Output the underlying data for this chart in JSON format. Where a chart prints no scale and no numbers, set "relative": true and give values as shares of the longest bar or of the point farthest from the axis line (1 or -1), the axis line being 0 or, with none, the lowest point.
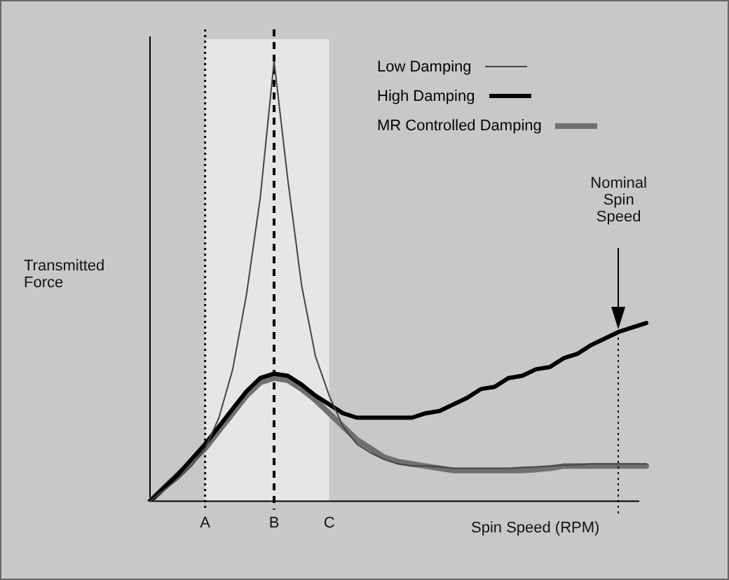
{
  "chart_data": {
    "type": "line",
    "relative": true,
    "ylabel": "Transmitted Force",
    "xlabel": "Spin Speed (RPM)",
    "categories": [
      null,
      null,
      null,
      null,
      "A",
      null,
      null,
      null,
      null,
      "B",
      null,
      null,
      null,
      "C",
      null,
      null,
      null,
      null,
      null,
      null,
      null,
      null,
      null,
      null,
      null,
      null,
      null,
      null,
      null,
      null,
      null,
      null,
      null,
      null,
      null,
      null,
      null
    ],
    "series": [
      {
        "name": "Low Damping",
        "color": "#444444",
        "values": [
          0,
          0.025,
          0.05,
          0.08,
          0.12,
          0.19,
          0.3,
          0.47,
          0.69,
          1,
          0.73,
          0.49,
          0.33,
          0.24,
          0.17,
          0.13,
          0.11,
          0.095,
          0.085,
          0.08,
          0.08,
          0.078,
          0.075,
          0.075,
          0.075,
          0.075,
          0.075,
          0.077,
          0.078,
          0.08,
          0.082,
          0.083,
          0.085,
          0.085,
          0.085,
          0.085,
          0.085
        ]
      },
      {
        "name": "High Damping",
        "color": "#000000",
        "values": [
          0,
          0.03,
          0.06,
          0.095,
          0.13,
          0.17,
          0.21,
          0.25,
          0.28,
          0.29,
          0.285,
          0.265,
          0.24,
          0.22,
          0.2,
          0.19,
          0.19,
          0.19,
          0.19,
          0.19,
          0.2,
          0.205,
          0.22,
          0.235,
          0.255,
          0.26,
          0.28,
          0.285,
          0.3,
          0.305,
          0.325,
          0.335,
          0.355,
          0.37,
          0.385,
          0.395,
          0.405
        ]
      },
      {
        "name": "MR Controlled Damping",
        "color": "#707070",
        "values": [
          0,
          0.03,
          0.06,
          0.09,
          0.12,
          0.16,
          0.2,
          0.24,
          0.27,
          0.28,
          0.275,
          0.255,
          0.23,
          0.2,
          0.17,
          0.14,
          0.12,
          0.1,
          0.09,
          0.085,
          0.08,
          0.075,
          0.07,
          0.07,
          0.07,
          0.07,
          0.07,
          0.07,
          0.072,
          0.075,
          0.08,
          0.08,
          0.08,
          0.08,
          0.08,
          0.08,
          0.08
        ]
      }
    ],
    "bands": [
      {
        "axis": "x",
        "from": "A",
        "to": "C",
        "color": "#e6e6e6"
      }
    ],
    "ref_lines": [
      {
        "axis": "x",
        "value": "A",
        "line_style": "dotted"
      },
      {
        "axis": "x",
        "value": "B",
        "line_style": "dashed"
      }
    ],
    "annotations": [
      "Nominal Spin Speed"
    ],
    "legend": "top right",
    "grid": false,
    "marker": "none",
    "line_style": "solid"
  }
}
